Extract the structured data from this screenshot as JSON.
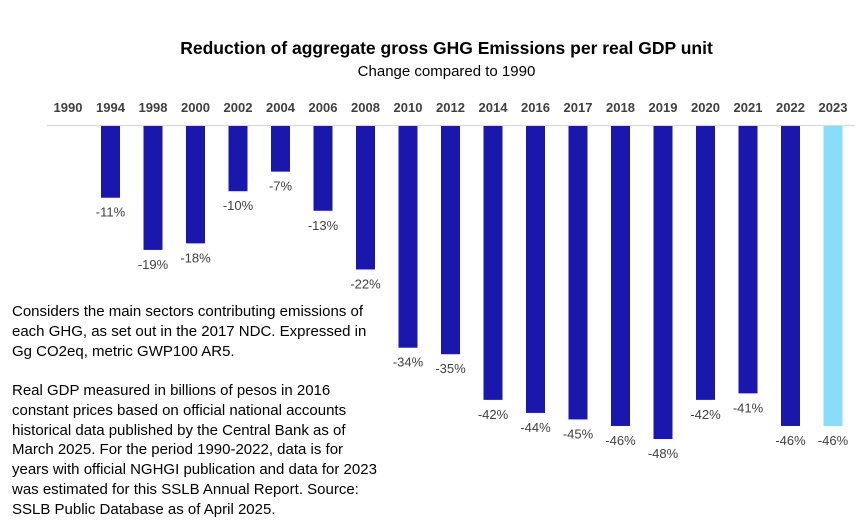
{
  "chart_data": {
    "type": "bar",
    "title": "Reduction of aggregate gross GHG Emissions per real GDP unit",
    "subtitle": "Change compared to 1990",
    "xlabel": "",
    "ylabel": "",
    "categories": [
      "1990",
      "1994",
      "1998",
      "2000",
      "2002",
      "2004",
      "2006",
      "2008",
      "2010",
      "2012",
      "2014",
      "2016",
      "2017",
      "2018",
      "2019",
      "2020",
      "2021",
      "2022",
      "2023"
    ],
    "values": [
      0,
      -11,
      -19,
      -18,
      -10,
      -7,
      -13,
      -22,
      -34,
      -35,
      -42,
      -44,
      -45,
      -46,
      -48,
      -42,
      -41,
      -46,
      -46
    ],
    "data_labels": [
      "",
      "-11%",
      "-19%",
      "-18%",
      "-10%",
      "-7%",
      "-13%",
      "-22%",
      "-34%",
      "-35%",
      "-42%",
      "-44%",
      "-45%",
      "-46%",
      "-48%",
      "-42%",
      "-41%",
      "-46%",
      "-46%"
    ],
    "estimated": [
      false,
      false,
      false,
      false,
      false,
      false,
      false,
      false,
      false,
      false,
      false,
      false,
      false,
      false,
      false,
      false,
      false,
      false,
      true
    ],
    "unit": "%",
    "ylim": [
      -50,
      0
    ],
    "x_axis_position": "top",
    "grid": false,
    "legend": "none",
    "colors": {
      "official": "#1a17ad",
      "estimated": "#88ddfb",
      "axis": "#d9d9d9",
      "text": "#404040"
    }
  },
  "notes": {
    "methodology": "Considers the main sectors contributing emissions of each GHG, as set out in the 2017 NDC. Expressed in Gg CO2eq, metric GWP100 AR5.",
    "gdp_source": "Real GDP measured in billions of pesos in 2016 constant prices based on official national accounts historical data published by the Central Bank as of March 2025. For the period 1990-2022, data is for years with official NGHGI publication and data for 2023 was estimated for this SSLB Annual Report. Source: SSLB Public Database as of April 2025."
  }
}
